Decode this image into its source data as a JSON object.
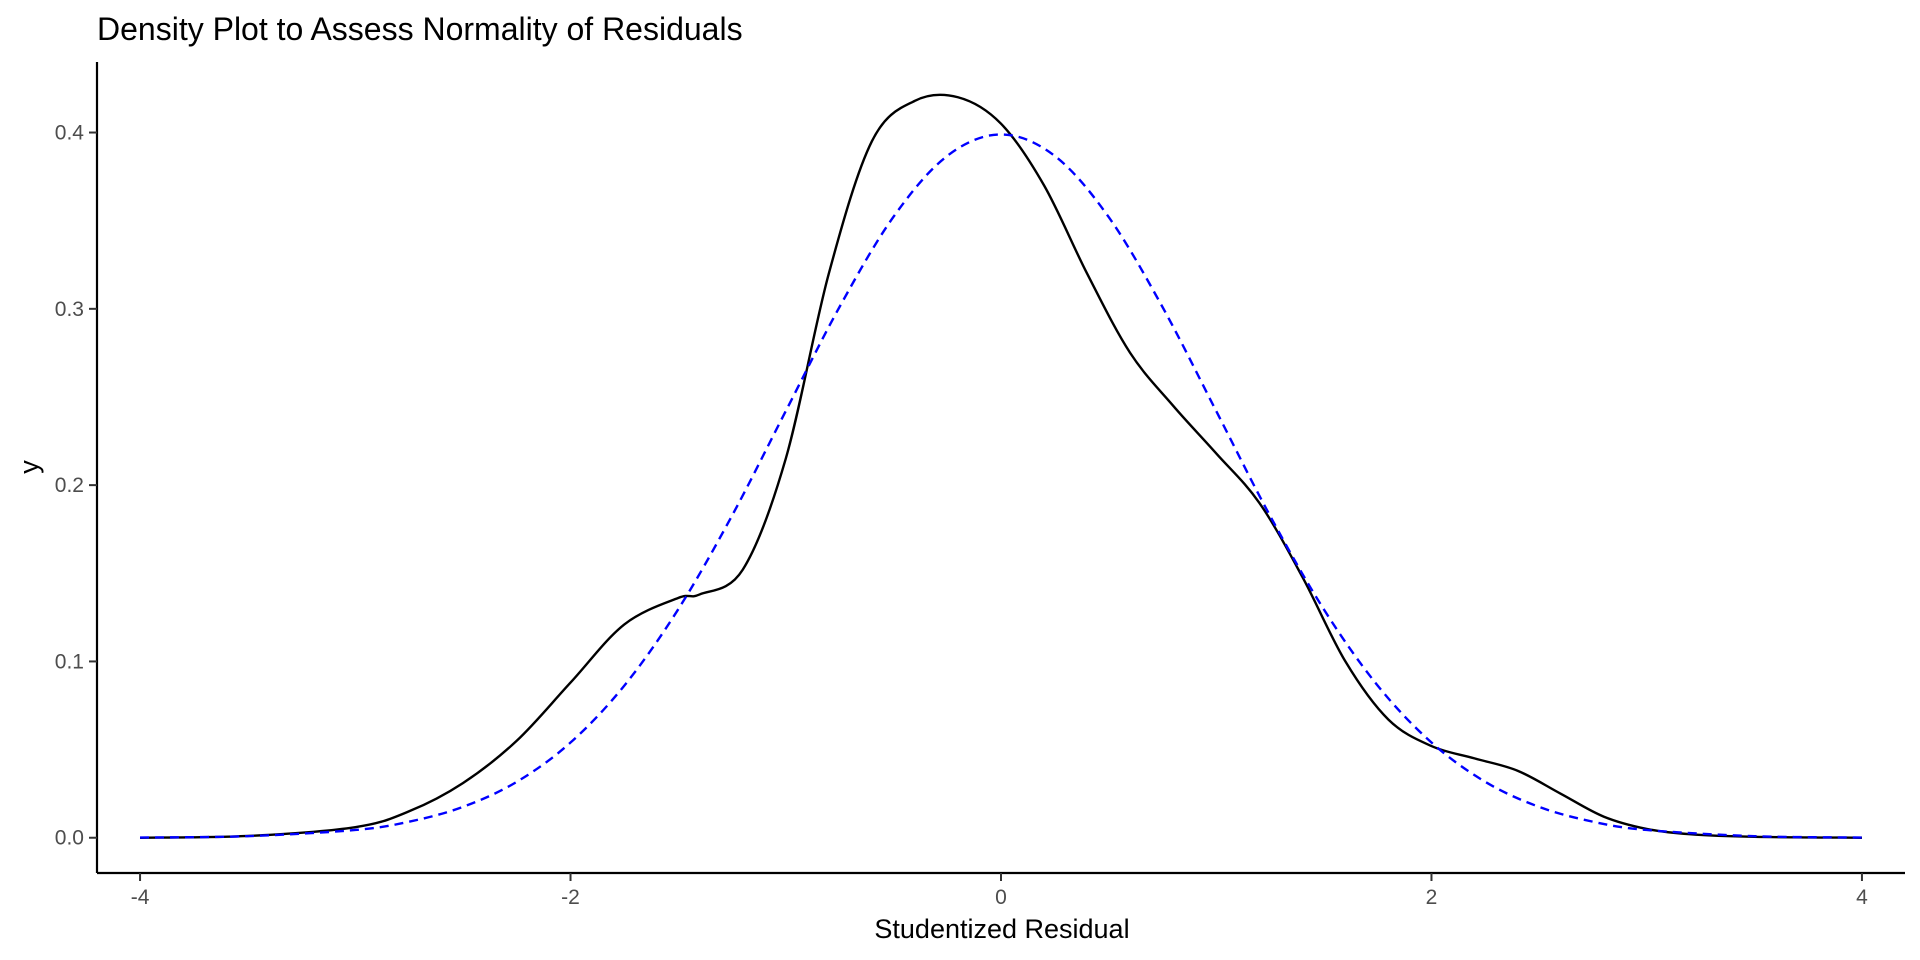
{
  "chart_data": {
    "type": "line",
    "title": "Density Plot to Assess Normality of Residuals",
    "xlabel": "Studentized Residual",
    "ylabel": "y",
    "xlim": [
      -4.2,
      4.2
    ],
    "ylim": [
      -0.02,
      0.44
    ],
    "grid": false,
    "legend": "none",
    "x_ticks": [
      -4,
      -2,
      0,
      2,
      4
    ],
    "x_tick_labels": [
      "-4",
      "-2",
      "0",
      "2",
      "4"
    ],
    "y_ticks": [
      0.0,
      0.1,
      0.2,
      0.3,
      0.4
    ],
    "y_tick_labels": [
      "0.0",
      "0.1",
      "0.2",
      "0.3",
      "0.4"
    ],
    "series": [
      {
        "color": "#000000",
        "style": "solid",
        "x": [
          -4,
          -3.5,
          -3,
          -2.75,
          -2.5,
          -2.25,
          -2,
          -1.75,
          -1.5,
          -1.4,
          -1.2,
          -1.0,
          -0.8,
          -0.6,
          -0.4,
          -0.2,
          0,
          0.2,
          0.4,
          0.6,
          0.8,
          1.0,
          1.2,
          1.4,
          1.6,
          1.8,
          2.0,
          2.2,
          2.4,
          2.6,
          2.8,
          3.0,
          3.2,
          3.5,
          4.0
        ],
        "values": [
          0.0,
          0.001,
          0.006,
          0.015,
          0.031,
          0.055,
          0.088,
          0.121,
          0.136,
          0.138,
          0.152,
          0.215,
          0.32,
          0.395,
          0.418,
          0.42,
          0.405,
          0.37,
          0.32,
          0.275,
          0.245,
          0.218,
          0.19,
          0.148,
          0.1,
          0.067,
          0.052,
          0.045,
          0.038,
          0.025,
          0.012,
          0.005,
          0.002,
          0.0005,
          0.0
        ]
      },
      {
        "color": "#0000ff",
        "style": "dashed",
        "x": [
          -4,
          -3.5,
          -3,
          -2.75,
          -2.5,
          -2.25,
          -2,
          -1.75,
          -1.5,
          -1.25,
          -1.0,
          -0.75,
          -0.5,
          -0.25,
          0,
          0.25,
          0.5,
          0.75,
          1.0,
          1.25,
          1.5,
          1.75,
          2.0,
          2.25,
          2.5,
          2.75,
          3.0,
          3.5,
          4.0
        ],
        "values": [
          0.0001,
          0.0009,
          0.0044,
          0.0091,
          0.0175,
          0.0317,
          0.054,
          0.0863,
          0.1295,
          0.1826,
          0.242,
          0.3011,
          0.3521,
          0.3867,
          0.3989,
          0.3867,
          0.3521,
          0.3011,
          0.242,
          0.1826,
          0.1295,
          0.0863,
          0.054,
          0.0317,
          0.0175,
          0.0091,
          0.0044,
          0.0009,
          0.0001
        ]
      }
    ]
  }
}
